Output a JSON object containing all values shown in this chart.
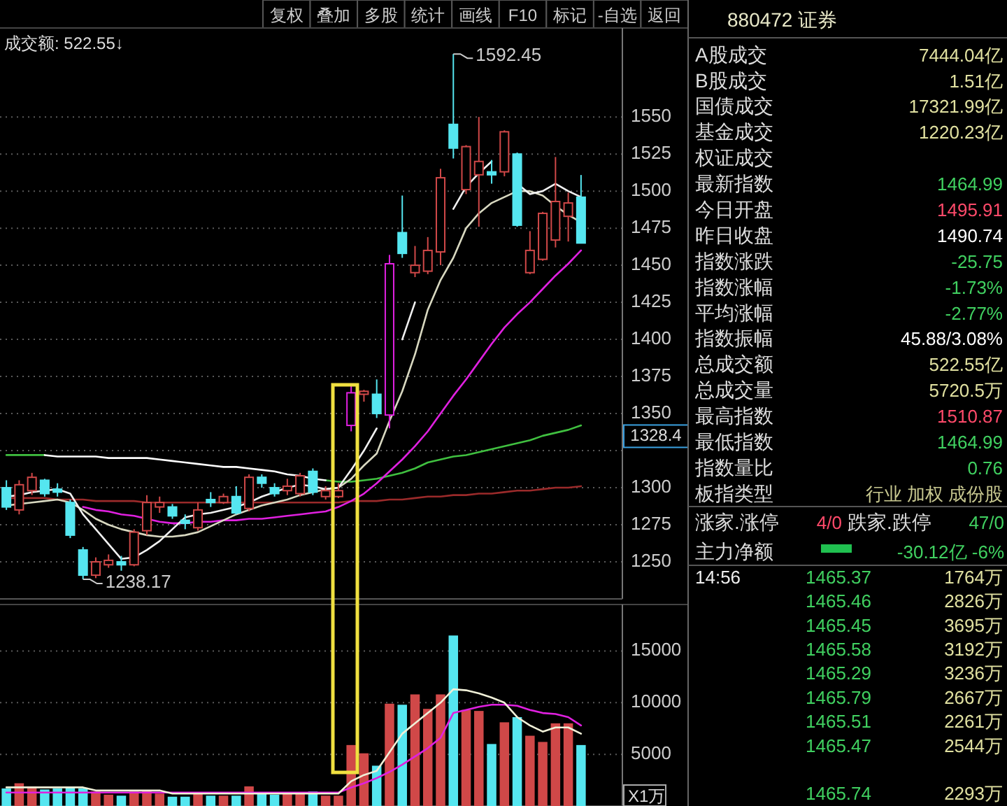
{
  "chart_data": [
    {
      "type": "other",
      "annotations": [
        "复权",
        "叠加",
        "多股",
        "统计",
        "画线",
        "F10",
        "标记",
        "-自选",
        "返回"
      ]
    },
    {
      "type": "candlestick",
      "title": "成交额: 522.55↓",
      "categories": [
        null,
        null,
        null,
        null,
        null,
        null,
        null,
        null,
        null,
        null,
        null,
        null,
        null,
        null,
        null,
        null,
        null,
        null,
        null,
        null,
        null,
        null,
        null,
        null,
        null,
        null,
        null,
        null,
        null,
        null,
        null,
        null,
        null,
        null,
        null,
        null,
        null,
        null,
        null,
        null,
        null,
        null,
        null,
        null,
        null,
        null
      ],
      "ohlc": [
        [
          1300,
          1305,
          1285,
          1287
        ],
        [
          1285,
          1305,
          1282,
          1302
        ],
        [
          1298,
          1310,
          1295,
          1307
        ],
        [
          1305,
          1306,
          1294,
          1296
        ],
        [
          1299,
          1303,
          1294,
          1297
        ],
        [
          1290,
          1292,
          1266,
          1268
        ],
        [
          1258,
          1260,
          1238.17,
          1241
        ],
        [
          1241,
          1253,
          1239,
          1250
        ],
        [
          1248,
          1255,
          1246,
          1251
        ],
        [
          1250,
          1254,
          1244,
          1248
        ],
        [
          1248,
          1272,
          1247,
          1270
        ],
        [
          1271,
          1295,
          1268,
          1290
        ],
        [
          1287,
          1294,
          1283,
          1290
        ],
        [
          1287,
          1289,
          1279,
          1281
        ],
        [
          1278,
          1282,
          1272,
          1276
        ],
        [
          1273,
          1290,
          1271,
          1285
        ],
        [
          1292,
          1297,
          1287,
          1290
        ],
        [
          1290,
          1296,
          1289,
          1294
        ],
        [
          1294,
          1301,
          1282,
          1283
        ],
        [
          1286,
          1309,
          1284,
          1307
        ],
        [
          1307,
          1309,
          1300,
          1303
        ],
        [
          1300,
          1303,
          1294,
          1296
        ],
        [
          1298,
          1306,
          1295,
          1301
        ],
        [
          1296,
          1310,
          1294,
          1308
        ],
        [
          1311,
          1313,
          1295,
          1297
        ],
        [
          1294,
          1301,
          1292,
          1298
        ],
        [
          1294,
          1303,
          1293,
          1298
        ],
        [
          1342,
          1369,
          1338,
          1364
        ],
        [
          1363,
          1366,
          1358,
          1365
        ],
        [
          1363,
          1373,
          1347,
          1350
        ],
        [
          1349,
          1457,
          1340,
          1451
        ],
        [
          1472,
          1497,
          1455,
          1458
        ],
        [
          1445,
          1463,
          1442,
          1450
        ],
        [
          1446,
          1469,
          1444,
          1460
        ],
        [
          1459,
          1515,
          1450,
          1509
        ],
        [
          1545,
          1592.45,
          1522,
          1529
        ],
        [
          1501,
          1531,
          1498,
          1530
        ],
        [
          1511,
          1550,
          1476,
          1520
        ],
        [
          1513,
          1521,
          1505,
          1511
        ],
        [
          1513,
          1541,
          1510,
          1540
        ],
        [
          1525,
          1526,
          1476,
          1477
        ],
        [
          1445,
          1473,
          1444,
          1460
        ],
        [
          1454,
          1486,
          1453,
          1485
        ],
        [
          1467,
          1523,
          1462,
          1493
        ],
        [
          1483,
          1499,
          1466,
          1492
        ],
        [
          1495.91,
          1510.87,
          1464.99,
          1464.99
        ]
      ],
      "colors": [
        "#55e6f0",
        "#d04848",
        "#d04848",
        "#55e6f0",
        "#55e6f0",
        "#55e6f0",
        "#55e6f0",
        "#d04848",
        "#d04848",
        "#55e6f0",
        "#d04848",
        "#d04848",
        "#d04848",
        "#55e6f0",
        "#55e6f0",
        "#d04848",
        "#55e6f0",
        "#d04848",
        "#55e6f0",
        "#d04848",
        "#55e6f0",
        "#55e6f0",
        "#d04848",
        "#d04848",
        "#55e6f0",
        "#d04848",
        "#d04848",
        "#e020e0",
        "#d04848",
        "#55e6f0",
        "#e020e0",
        "#55e6f0",
        "#d04848",
        "#d04848",
        "#d04848",
        "#55e6f0",
        "#d04848",
        "#d04848",
        "#55e6f0",
        "#d04848",
        "#55e6f0",
        "#d04848",
        "#d04848",
        "#d04848",
        "#d04848",
        "#55e6f0"
      ],
      "series": [
        {
          "type": "line",
          "color": "#9a2a2a",
          "values": [
            1293,
            1293,
            1293,
            1293,
            1292,
            1292,
            1292,
            1291,
            1291,
            1291,
            1291,
            1290,
            1290,
            1290,
            1290,
            1290,
            1290,
            1290,
            1290,
            1290,
            1290,
            1290,
            1290,
            1290,
            1290,
            1290,
            1290,
            1291,
            1291,
            1291,
            1292,
            1292,
            1293,
            1294,
            1294,
            1295,
            1295,
            1296,
            1296,
            1297,
            1298,
            1298,
            1299,
            1300,
            1300,
            1301
          ]
        },
        {
          "type": "line",
          "color": "#40c040",
          "values": [
            1322,
            1322,
            1322,
            1322,
            null,
            null,
            null,
            null,
            null,
            null,
            null,
            null,
            null,
            null,
            null,
            null,
            null,
            null,
            null,
            null,
            null,
            null,
            null,
            null,
            null,
            1305,
            1304,
            1304,
            1305,
            1306,
            1308,
            1310,
            1313,
            1317,
            1319,
            1321,
            1322,
            1324,
            1326,
            1328,
            1330,
            1332,
            1335,
            1337,
            1339,
            1342
          ]
        },
        {
          "type": "line",
          "color": "#ffffff",
          "values": [
            null,
            null,
            null,
            1322,
            1321,
            1321,
            1321,
            1321,
            1320,
            1320,
            1320,
            1320,
            1319,
            1318,
            1317,
            1316,
            1315,
            1314,
            1314,
            1313,
            1312,
            1311,
            1309,
            1308,
            1306,
            1305,
            null,
            null,
            null,
            null,
            null,
            null,
            null,
            null,
            null,
            null,
            null,
            null,
            null,
            null,
            null,
            null,
            null,
            null,
            null,
            null
          ]
        },
        {
          "type": "line",
          "color": "#e020e0",
          "values": [
            null,
            null,
            null,
            null,
            null,
            null,
            1287,
            1285,
            1284,
            1282,
            1281,
            1279,
            1277,
            1276,
            1276,
            1277,
            1277,
            1278,
            1278,
            1279,
            1279,
            1280,
            1281,
            1282,
            1283,
            1284,
            1287,
            1291,
            1296,
            1303,
            1311,
            1319,
            1328,
            1338,
            1350,
            1362,
            1373,
            1385,
            1397,
            1408,
            1417,
            1425,
            1434,
            1443,
            1451,
            1460
          ]
        },
        {
          "type": "line",
          "color": "#d8d8c0",
          "values": [
            1288,
            1289,
            1290,
            1291,
            1292,
            1290,
            1285,
            1279,
            1275,
            1272,
            1270,
            1268,
            1267,
            1267,
            1268,
            1270,
            1274,
            1278,
            1282,
            1285,
            1288,
            1290,
            1292,
            1295,
            1297,
            1299,
            1300,
            1306,
            1315,
            1323,
            1345,
            1365,
            1390,
            1420,
            1440,
            1455,
            1475,
            1485,
            1492,
            1496,
            1500,
            1500,
            1497,
            1490,
            1484,
            1479
          ]
        },
        {
          "type": "line",
          "color": "#f0f0f0",
          "values": [
            1294,
            1295,
            1297,
            1298,
            1299,
            1296,
            1282,
            1272,
            1262,
            1252,
            1253,
            1258,
            1264,
            1272,
            1280,
            1282,
            1283,
            1285,
            1287,
            1290,
            1294,
            1297,
            1300,
            1302,
            1301,
            1299,
            1300,
            1312,
            1325,
            1340,
            null,
            1400,
            1425,
            null,
            null,
            1488,
            1503,
            1512,
            1520,
            null,
            1505,
            1498,
            1500,
            1505,
            1500,
            1496
          ]
        }
      ],
      "ylim": [
        1225,
        1610
      ],
      "yticks": [
        1250,
        1275,
        1300,
        {
          "value": 1325,
          "label": null
        },
        1350,
        1375,
        1400,
        1425,
        1450,
        1475,
        1500,
        1525,
        1550
      ],
      "grid": "y",
      "tick_labels": "y",
      "annotations": [
        "1592.45",
        "1238.17",
        "1328.4"
      ]
    },
    {
      "type": "bar",
      "ylabel": "X1万",
      "categories": [
        null,
        null,
        null,
        null,
        null,
        null,
        null,
        null,
        null,
        null,
        null,
        null,
        null,
        null,
        null,
        null,
        null,
        null,
        null,
        null,
        null,
        null,
        null,
        null,
        null,
        null,
        null,
        null,
        null,
        null,
        null,
        null,
        null,
        null,
        null,
        null,
        null,
        null,
        null,
        null,
        null,
        null,
        null,
        null,
        null,
        null
      ],
      "values": [
        1700,
        2200,
        1900,
        1600,
        1700,
        1800,
        1700,
        1400,
        1100,
        1000,
        1400,
        1500,
        1200,
        900,
        900,
        1300,
        1000,
        1000,
        1000,
        1900,
        1200,
        1100,
        1200,
        1200,
        1400,
        1000,
        1000,
        5900,
        5100,
        3900,
        9900,
        9800,
        10800,
        9400,
        10800,
        16500,
        9300,
        9200,
        6000,
        8100,
        8600,
        6800,
        6200,
        8000,
        8000,
        5900
      ],
      "colors": [
        "#55e6f0",
        "#d04848",
        "#d04848",
        "#55e6f0",
        "#55e6f0",
        "#55e6f0",
        "#55e6f0",
        "#d04848",
        "#d04848",
        "#55e6f0",
        "#d04848",
        "#d04848",
        "#d04848",
        "#55e6f0",
        "#55e6f0",
        "#d04848",
        "#55e6f0",
        "#d04848",
        "#55e6f0",
        "#d04848",
        "#55e6f0",
        "#55e6f0",
        "#d04848",
        "#d04848",
        "#55e6f0",
        "#d04848",
        "#d04848",
        "#d04848",
        "#d04848",
        "#55e6f0",
        "#d04848",
        "#55e6f0",
        "#d04848",
        "#d04848",
        "#d04848",
        "#55e6f0",
        "#d04848",
        "#d04848",
        "#55e6f0",
        "#d04848",
        "#55e6f0",
        "#d04848",
        "#d04848",
        "#d04848",
        "#d04848",
        "#55e6f0"
      ],
      "series": [
        {
          "type": "line",
          "color": "#e020e0",
          "values": [
            1300,
            1300,
            1300,
            1300,
            1300,
            1300,
            1300,
            1300,
            1300,
            1300,
            1300,
            1300,
            1300,
            1300,
            1300,
            1300,
            1300,
            1300,
            1300,
            1300,
            1300,
            1300,
            1300,
            1300,
            1300,
            1300,
            1300,
            1800,
            2200,
            2700,
            3300,
            4000,
            4800,
            5600,
            6600,
            9000,
            9300,
            9600,
            9800,
            9800,
            9700,
            9300,
            9000,
            8900,
            8600,
            7800
          ]
        },
        {
          "type": "line",
          "color": "#f0f0d8",
          "values": [
            1800,
            1800,
            1800,
            1800,
            1800,
            1800,
            1800,
            1500,
            1500,
            1500,
            1500,
            1500,
            1500,
            1200,
            1200,
            1200,
            1200,
            1200,
            1200,
            1200,
            1200,
            1200,
            1200,
            1200,
            1200,
            1200,
            1200,
            2400,
            3000,
            3400,
            5200,
            7000,
            8000,
            9000,
            10000,
            11300,
            11200,
            10900,
            10500,
            10000,
            8600,
            7800,
            7200,
            7600,
            7600,
            7000
          ]
        }
      ],
      "ylim": [
        0,
        19500
      ],
      "yticks": [
        5000,
        10000,
        15000
      ],
      "grid": "y",
      "tick_labels": "y"
    },
    {
      "type": "other",
      "title": "880472 证券",
      "categories": [
        "A股成交",
        "B股成交",
        "国债成交",
        "基金成交",
        "权证成交",
        "最新指数",
        "今日开盘",
        "昨日收盘",
        "指数涨跌",
        "指数涨幅",
        "平均涨幅",
        "指数振幅",
        "总成交额",
        "总成交量",
        "最高指数",
        "最低指数",
        "指数量比",
        "板指类型"
      ],
      "value_labels": [
        "7444.04亿",
        "1.51亿",
        "17321.99亿",
        "1220.23亿",
        null,
        "1464.99",
        "1495.91",
        "1490.74",
        "-25.75",
        "-1.73%",
        "-2.77%",
        "45.88/3.08%",
        "522.55亿",
        "5720.5万",
        "1510.87",
        "1464.99",
        "0.76",
        "行业 加权 成份股"
      ],
      "colors": [
        "#e0e0a0",
        "#e0e0a0",
        "#e0e0a0",
        "#e0e0a0",
        null,
        "#40d060",
        "#ff4a6a",
        "#ffffff",
        "#40d060",
        "#40d060",
        "#40d060",
        "#ffffff",
        "#e0e0a0",
        "#e0e0a0",
        "#ff4a6a",
        "#40d060",
        "#40d060",
        "#c8c890"
      ]
    },
    {
      "type": "other",
      "categories": [
        "涨家.涨停",
        "跌家.跌停",
        "主力净额"
      ],
      "value_labels": [
        "4/0",
        "47/0",
        "-30.12亿 -6%"
      ],
      "colors": [
        "#ff4a6a",
        "#40d060",
        "#40d060"
      ]
    },
    {
      "type": "other",
      "categories": [
        "14:56",
        null,
        null,
        null,
        null,
        null,
        null,
        null,
        null,
        null
      ],
      "value_labels": [
        "1465.37",
        "1465.46",
        "1465.45",
        "1465.58",
        "1465.29",
        "1465.79",
        "1465.51",
        "1465.47",
        null,
        "1465.74"
      ],
      "colors": [
        "#40d060",
        "#40d060",
        "#40d060",
        "#40d060",
        "#40d060",
        "#40d060",
        "#40d060",
        "#40d060",
        null,
        "#40d060"
      ]
    },
    {
      "type": "other",
      "categories": [
        null,
        null,
        null,
        null,
        null,
        null,
        null,
        null,
        null,
        null
      ],
      "value_labels": [
        "1764万",
        "2826万",
        "3695万",
        "3192万",
        "3236万",
        "2667万",
        "2261万",
        "2544万",
        null,
        "2293万"
      ],
      "colors": [
        "#e0e0a0",
        "#e0e0a0",
        "#e0e0a0",
        "#e0e0a0",
        "#e0e0a0",
        "#e0e0a0",
        "#e0e0a0",
        "#e0e0a0",
        null,
        "#e0e0a0"
      ]
    }
  ]
}
